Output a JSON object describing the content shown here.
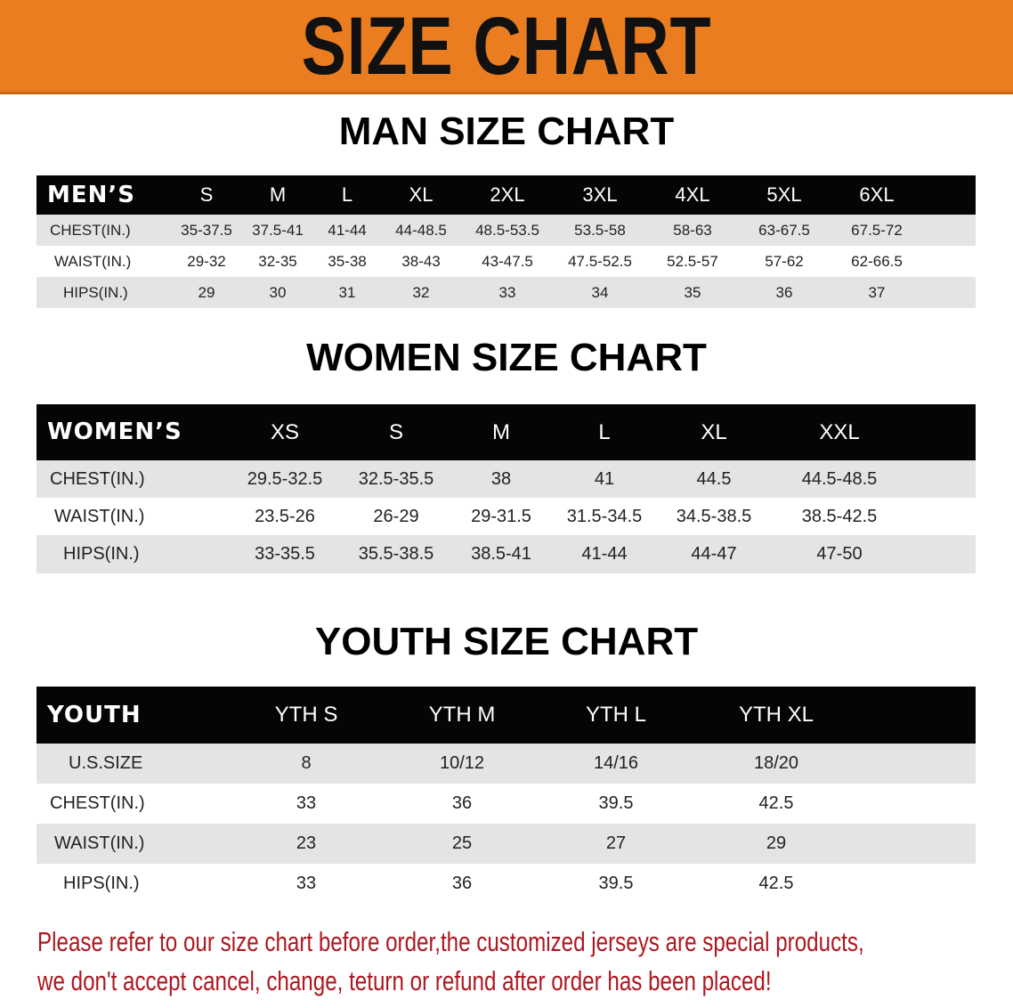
{
  "banner": {
    "title": "SIZE CHART",
    "color": "#ea7d1f"
  },
  "men": {
    "title": "MAN SIZE CHART",
    "header": {
      "label": "MEN’S",
      "cells": [
        "S",
        "M",
        "L",
        "XL",
        "2XL",
        "3XL",
        "4XL",
        "5XL",
        "6XL"
      ]
    },
    "rows": [
      {
        "label": "CHEST(IN.)",
        "cells": [
          "35-37.5",
          "37.5-41",
          "41-44",
          "44-48.5",
          "48.5-53.5",
          "53.5-58",
          "58-63",
          "63-67.5",
          "67.5-72"
        ]
      },
      {
        "label": "WAIST(IN.)",
        "cells": [
          "29-32",
          "32-35",
          "35-38",
          "38-43",
          "43-47.5",
          "47.5-52.5",
          "52.5-57",
          "57-62",
          "62-66.5"
        ]
      },
      {
        "label": "HIPS(IN.)",
        "cells": [
          "29",
          "30",
          "31",
          "32",
          "33",
          "34",
          "35",
          "36",
          "37"
        ]
      }
    ]
  },
  "women": {
    "title": "WOMEN SIZE CHART",
    "header": {
      "label": "WOMEN’S",
      "cells": [
        "XS",
        "S",
        "M",
        "L",
        "XL",
        "XXL"
      ]
    },
    "rows": [
      {
        "label": "CHEST(IN.)",
        "cells": [
          "29.5-32.5",
          "32.5-35.5",
          "38",
          "41",
          "44.5",
          "44.5-48.5"
        ]
      },
      {
        "label": "WAIST(IN.)",
        "cells": [
          "23.5-26",
          "26-29",
          "29-31.5",
          "31.5-34.5",
          "34.5-38.5",
          "38.5-42.5"
        ]
      },
      {
        "label": "HIPS(IN.)",
        "cells": [
          "33-35.5",
          "35.5-38.5",
          "38.5-41",
          "41-44",
          "44-47",
          "47-50"
        ]
      }
    ]
  },
  "youth": {
    "title": "YOUTH SIZE CHART",
    "header": {
      "label": "YOUTH",
      "cells": [
        "YTH S",
        "YTH M",
        "YTH L",
        "YTH XL"
      ]
    },
    "rows": [
      {
        "label": "U.S.SIZE",
        "cells": [
          "8",
          "10/12",
          "14/16",
          "18/20"
        ]
      },
      {
        "label": "CHEST(IN.)",
        "cells": [
          "33",
          "36",
          "39.5",
          "42.5"
        ]
      },
      {
        "label": "WAIST(IN.)",
        "cells": [
          "23",
          "25",
          "27",
          "29"
        ]
      },
      {
        "label": "HIPS(IN.)",
        "cells": [
          "33",
          "36",
          "39.5",
          "42.5"
        ]
      }
    ]
  },
  "notice": {
    "line1": "Please refer to our size chart before order,the customized jerseys are special products,",
    "line2": "we don't accept cancel, change, teturn or refund after order has been placed!",
    "color": "#ad1820"
  }
}
